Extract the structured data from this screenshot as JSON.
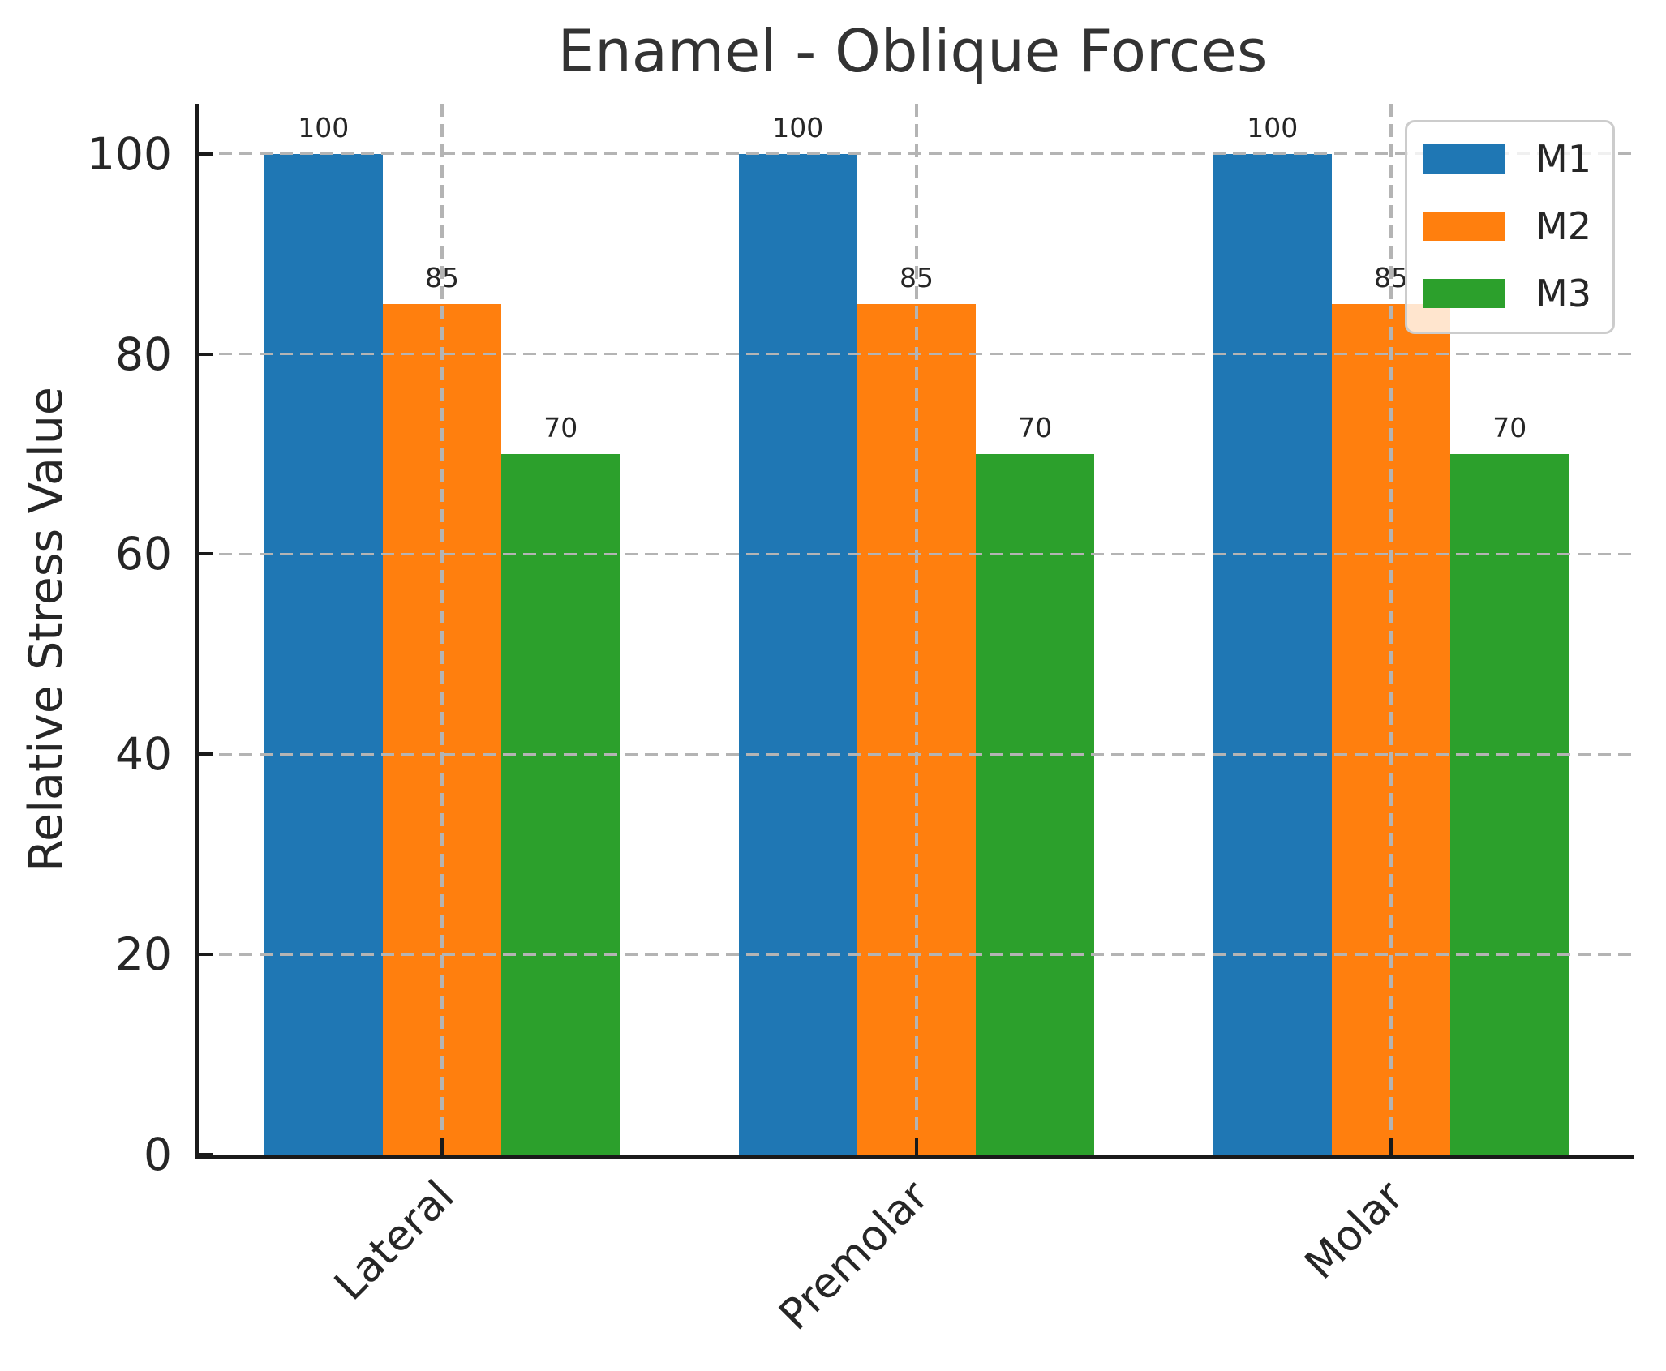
{
  "chart_data": {
    "type": "bar",
    "title": "Enamel - Oblique Forces",
    "xlabel": "",
    "ylabel": "Relative Stress Value",
    "categories": [
      "Lateral",
      "Premolar",
      "Molar"
    ],
    "series": [
      {
        "name": "M1",
        "color": "#1f77b4",
        "values": [
          100,
          100,
          100
        ]
      },
      {
        "name": "M2",
        "color": "#ff7f0e",
        "values": [
          85,
          85,
          85
        ]
      },
      {
        "name": "M3",
        "color": "#2ca02c",
        "values": [
          70,
          70,
          70
        ]
      }
    ],
    "bar_value_labels": [
      [
        "100",
        "85",
        "70"
      ],
      [
        "100",
        "85",
        "70"
      ],
      [
        "100",
        "85",
        "70"
      ]
    ],
    "yticks": [
      "0",
      "20",
      "40",
      "60",
      "80",
      "100"
    ],
    "ylim": [
      0,
      105
    ],
    "grid": true,
    "grid_style": "dashed",
    "legend_position": "upper right",
    "legend_labels": [
      "M1",
      "M2",
      "M3"
    ]
  },
  "colors": {
    "text": "#262626",
    "title": "#333333",
    "spine": "#1a1a1a",
    "grid": "#b4b4b4",
    "legend_border": "#cccccc",
    "background": "#ffffff"
  }
}
